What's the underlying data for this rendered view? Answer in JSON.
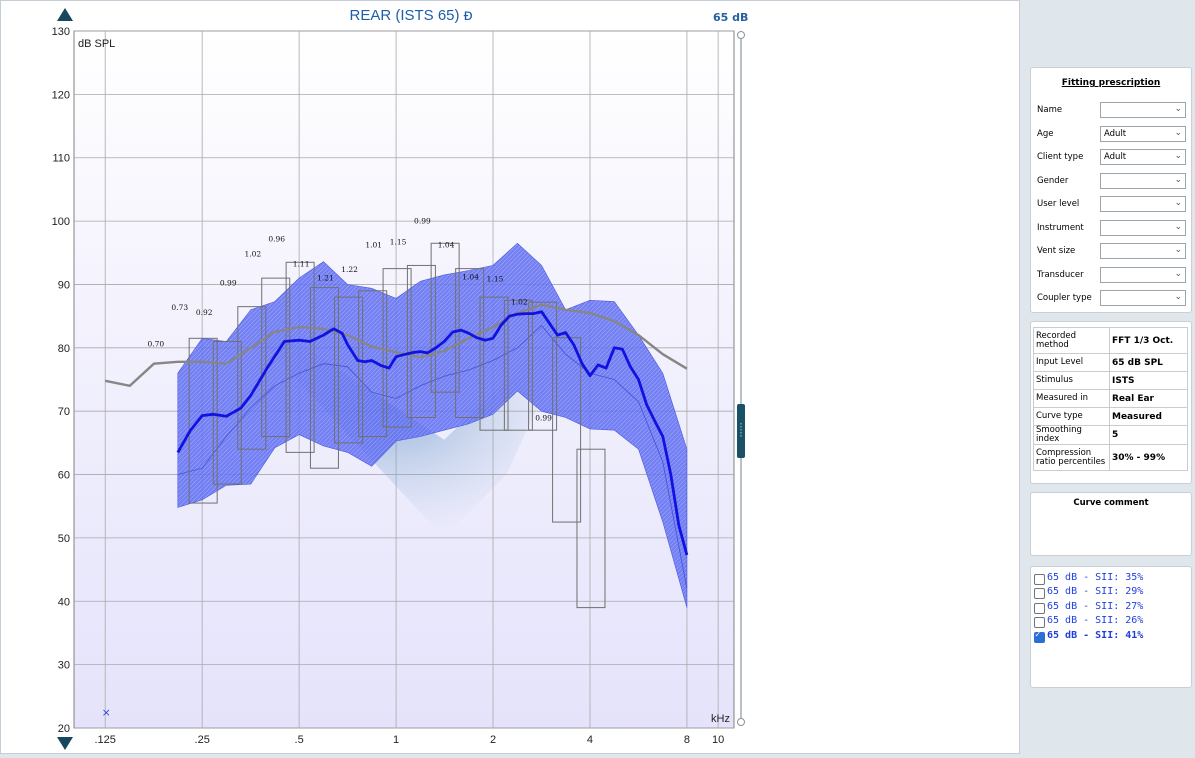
{
  "title": "REAR (ISTS 65)",
  "title_icon": "ear-icon",
  "level_label": "65 dB",
  "chart_data": {
    "type": "line",
    "ylabel": "dB SPL",
    "xlabel": "kHz",
    "ylim": [
      20,
      130
    ],
    "yticks": [
      20,
      30,
      40,
      50,
      60,
      70,
      80,
      90,
      100,
      110,
      120,
      130
    ],
    "xscale": "log",
    "xticks": [
      {
        "v": 0.125,
        "label": ".125"
      },
      {
        "v": 0.25,
        "label": ".25"
      },
      {
        "v": 0.5,
        "label": ".5"
      },
      {
        "v": 1,
        "label": "1"
      },
      {
        "v": 2,
        "label": "2"
      },
      {
        "v": 4,
        "label": "4"
      },
      {
        "v": 8,
        "label": "8"
      },
      {
        "v": 10,
        "label": "10"
      }
    ],
    "grid": true,
    "colors": {
      "measured": "#1212e0",
      "target": "#868686",
      "band": "#5d6cf0",
      "boxes": "#707070",
      "background": "#e4e3fb"
    },
    "target_curve": [
      [
        0.125,
        74.8
      ],
      [
        0.149,
        74
      ],
      [
        0.177,
        77.5
      ],
      [
        0.21,
        77.8
      ],
      [
        0.25,
        77.8
      ],
      [
        0.297,
        77.5
      ],
      [
        0.354,
        80
      ],
      [
        0.42,
        82.5
      ],
      [
        0.5,
        83.3
      ],
      [
        0.595,
        83
      ],
      [
        0.707,
        82
      ],
      [
        0.84,
        80.2
      ],
      [
        1,
        79.3
      ],
      [
        1.19,
        78.5
      ],
      [
        1.41,
        79.5
      ],
      [
        1.68,
        81.5
      ],
      [
        2,
        83.3
      ],
      [
        2.38,
        85.5
      ],
      [
        2.83,
        86.8
      ],
      [
        3.36,
        86
      ],
      [
        4,
        85.5
      ],
      [
        4.76,
        84.2
      ],
      [
        5.66,
        82
      ],
      [
        6.73,
        79
      ],
      [
        8,
        76.7
      ]
    ],
    "measured_curve": [
      [
        0.21,
        63.5
      ],
      [
        0.23,
        67
      ],
      [
        0.25,
        69.3
      ],
      [
        0.27,
        69.5
      ],
      [
        0.297,
        69.2
      ],
      [
        0.33,
        70.5
      ],
      [
        0.354,
        72.5
      ],
      [
        0.4,
        77
      ],
      [
        0.45,
        81
      ],
      [
        0.5,
        81.2
      ],
      [
        0.54,
        81
      ],
      [
        0.595,
        82
      ],
      [
        0.64,
        83
      ],
      [
        0.68,
        82.3
      ],
      [
        0.707,
        80.5
      ],
      [
        0.76,
        78
      ],
      [
        0.8,
        77.8
      ],
      [
        0.84,
        78
      ],
      [
        0.9,
        77.2
      ],
      [
        0.95,
        76.8
      ],
      [
        1,
        78.6
      ],
      [
        1.07,
        79
      ],
      [
        1.14,
        79.3
      ],
      [
        1.19,
        79.4
      ],
      [
        1.25,
        79.2
      ],
      [
        1.33,
        80
      ],
      [
        1.41,
        81
      ],
      [
        1.5,
        82.5
      ],
      [
        1.59,
        82.8
      ],
      [
        1.68,
        82.3
      ],
      [
        1.78,
        81.6
      ],
      [
        1.89,
        81.2
      ],
      [
        2,
        81.5
      ],
      [
        2.12,
        83.6
      ],
      [
        2.25,
        85
      ],
      [
        2.38,
        85.3
      ],
      [
        2.52,
        85.4
      ],
      [
        2.67,
        85.4
      ],
      [
        2.83,
        85.7
      ],
      [
        3,
        83.8
      ],
      [
        3.17,
        82
      ],
      [
        3.36,
        82.4
      ],
      [
        3.56,
        80.5
      ],
      [
        3.78,
        77.5
      ],
      [
        4,
        75.6
      ],
      [
        4.24,
        77.3
      ],
      [
        4.49,
        76.8
      ],
      [
        4.76,
        80
      ],
      [
        5.04,
        79.8
      ],
      [
        5.34,
        77
      ],
      [
        5.66,
        75
      ],
      [
        6,
        71
      ],
      [
        6.35,
        68.5
      ],
      [
        6.73,
        66
      ],
      [
        7.13,
        60
      ],
      [
        7.55,
        52
      ],
      [
        8,
        47.3
      ]
    ],
    "band_upper": [
      [
        0.21,
        76
      ],
      [
        0.25,
        81.5
      ],
      [
        0.297,
        81
      ],
      [
        0.354,
        86
      ],
      [
        0.42,
        87.3
      ],
      [
        0.5,
        91
      ],
      [
        0.595,
        93.6
      ],
      [
        0.707,
        90
      ],
      [
        0.84,
        89.4
      ],
      [
        1,
        87.8
      ],
      [
        1.19,
        90.5
      ],
      [
        1.41,
        91.5
      ],
      [
        1.68,
        92.2
      ],
      [
        2,
        93
      ],
      [
        2.38,
        96.5
      ],
      [
        2.83,
        93
      ],
      [
        3.36,
        86
      ],
      [
        4,
        87.5
      ],
      [
        4.76,
        87.3
      ],
      [
        5.66,
        82
      ],
      [
        6.73,
        76
      ],
      [
        8,
        64
      ]
    ],
    "band_lower": [
      [
        8,
        39
      ],
      [
        6.73,
        52.5
      ],
      [
        5.66,
        64
      ],
      [
        4.76,
        67
      ],
      [
        4,
        67.2
      ],
      [
        3.36,
        69
      ],
      [
        2.83,
        70
      ],
      [
        2.38,
        73.2
      ],
      [
        2,
        69.5
      ],
      [
        1.68,
        68
      ],
      [
        1.41,
        67
      ],
      [
        1.19,
        66
      ],
      [
        1,
        65.3
      ],
      [
        0.84,
        61.3
      ],
      [
        0.707,
        63.5
      ],
      [
        0.595,
        64.5
      ],
      [
        0.5,
        66.3
      ],
      [
        0.42,
        64.2
      ],
      [
        0.354,
        58.5
      ],
      [
        0.297,
        58.3
      ],
      [
        0.25,
        56
      ],
      [
        0.21,
        54.8
      ]
    ],
    "band_median": [
      [
        0.21,
        60
      ],
      [
        0.25,
        61
      ],
      [
        0.297,
        66
      ],
      [
        0.354,
        70.5
      ],
      [
        0.42,
        74
      ],
      [
        0.5,
        76
      ],
      [
        0.595,
        77.5
      ],
      [
        0.707,
        77
      ],
      [
        0.84,
        73
      ],
      [
        1,
        72
      ],
      [
        1.19,
        74
      ],
      [
        1.41,
        75.5
      ],
      [
        1.68,
        76.5
      ],
      [
        2,
        78
      ],
      [
        2.38,
        80
      ],
      [
        2.83,
        83.5
      ],
      [
        3.36,
        79
      ],
      [
        4,
        76
      ],
      [
        4.76,
        75
      ],
      [
        5.66,
        71.5
      ],
      [
        6.73,
        62
      ],
      [
        8,
        42
      ]
    ],
    "percentile_boxes": [
      {
        "f": 0.25,
        "lo": 55.5,
        "hi": 81.5
      },
      {
        "f": 0.297,
        "lo": 58.5,
        "hi": 81
      },
      {
        "f": 0.354,
        "lo": 64,
        "hi": 86.5
      },
      {
        "f": 0.42,
        "lo": 66,
        "hi": 91
      },
      {
        "f": 0.5,
        "lo": 63.5,
        "hi": 93.5
      },
      {
        "f": 0.595,
        "lo": 61,
        "hi": 89.5
      },
      {
        "f": 0.707,
        "lo": 65,
        "hi": 88
      },
      {
        "f": 0.84,
        "lo": 66,
        "hi": 89
      },
      {
        "f": 1,
        "lo": 67.5,
        "hi": 92.5
      },
      {
        "f": 1.19,
        "lo": 69,
        "hi": 93
      },
      {
        "f": 1.41,
        "lo": 73,
        "hi": 96.5
      },
      {
        "f": 1.68,
        "lo": 69,
        "hi": 92.5
      },
      {
        "f": 2,
        "lo": 67,
        "hi": 88
      },
      {
        "f": 2.38,
        "lo": 67,
        "hi": 87.5
      },
      {
        "f": 2.83,
        "lo": 67,
        "hi": 87.2
      },
      {
        "f": 3.36,
        "lo": 52.5,
        "hi": 81.6
      },
      {
        "f": 4,
        "lo": 39,
        "hi": 64
      }
    ],
    "compression_labels": [
      {
        "f": 0.177,
        "y": 80.2,
        "t": "0.70"
      },
      {
        "f": 0.21,
        "y": 86,
        "t": "0.73"
      },
      {
        "f": 0.25,
        "y": 85.2,
        "t": "0.92"
      },
      {
        "f": 0.297,
        "y": 89.8,
        "t": "0.99"
      },
      {
        "f": 0.354,
        "y": 94.4,
        "t": "1.02"
      },
      {
        "f": 0.42,
        "y": 96.8,
        "t": "0.96"
      },
      {
        "f": 0.5,
        "y": 92.8,
        "t": "1.11"
      },
      {
        "f": 0.595,
        "y": 90.6,
        "t": "1.21"
      },
      {
        "f": 0.707,
        "y": 92,
        "t": "1.22"
      },
      {
        "f": 0.84,
        "y": 95.8,
        "t": "1.01"
      },
      {
        "f": 1,
        "y": 96.3,
        "t": "1.15"
      },
      {
        "f": 1.19,
        "y": 99.6,
        "t": "0.99"
      },
      {
        "f": 1.41,
        "y": 95.8,
        "t": "1.04"
      },
      {
        "f": 1.68,
        "y": 90.8,
        "t": "1.04"
      },
      {
        "f": 2,
        "y": 90.5,
        "t": "1.15"
      },
      {
        "f": 2.38,
        "y": 86.8,
        "t": "1.02"
      },
      {
        "f": 2.83,
        "y": 68.5,
        "t": "0.99"
      }
    ],
    "marker": {
      "f": 0.125,
      "y": 22.5,
      "t": "×"
    }
  },
  "prescription": {
    "title": "Fitting prescription",
    "rows": [
      {
        "label": "Name",
        "value": ""
      },
      {
        "label": "Age",
        "value": "Adult"
      },
      {
        "label": "Client type",
        "value": "Adult"
      },
      {
        "label": "Gender",
        "value": ""
      },
      {
        "label": "User level",
        "value": ""
      },
      {
        "label": "Instrument",
        "value": ""
      },
      {
        "label": "Vent size",
        "value": ""
      },
      {
        "label": "Transducer",
        "value": ""
      },
      {
        "label": "Coupler type",
        "value": ""
      }
    ]
  },
  "info": {
    "rows": [
      {
        "label": "Recorded method",
        "value": "FFT 1/3 Oct."
      },
      {
        "label": "Input Level",
        "value": "65 dB SPL"
      },
      {
        "label": "Stimulus",
        "value": "ISTS"
      },
      {
        "label": "Measured in",
        "value": "Real Ear"
      },
      {
        "label": "Curve type",
        "value": "Measured"
      },
      {
        "label": "Smoothing index",
        "value": "5"
      },
      {
        "label": "Compression ratio percentiles",
        "value": "30% - 99%"
      }
    ]
  },
  "comment": {
    "title": "Curve comment"
  },
  "curves": [
    {
      "label": "65 dB - SII: 35%",
      "checked": false
    },
    {
      "label": "65 dB - SII: 29%",
      "checked": false
    },
    {
      "label": "65 dB - SII: 27%",
      "checked": false
    },
    {
      "label": "65 dB - SII: 26%",
      "checked": false
    },
    {
      "label": "65 dB - SII: 41%",
      "checked": true
    }
  ]
}
